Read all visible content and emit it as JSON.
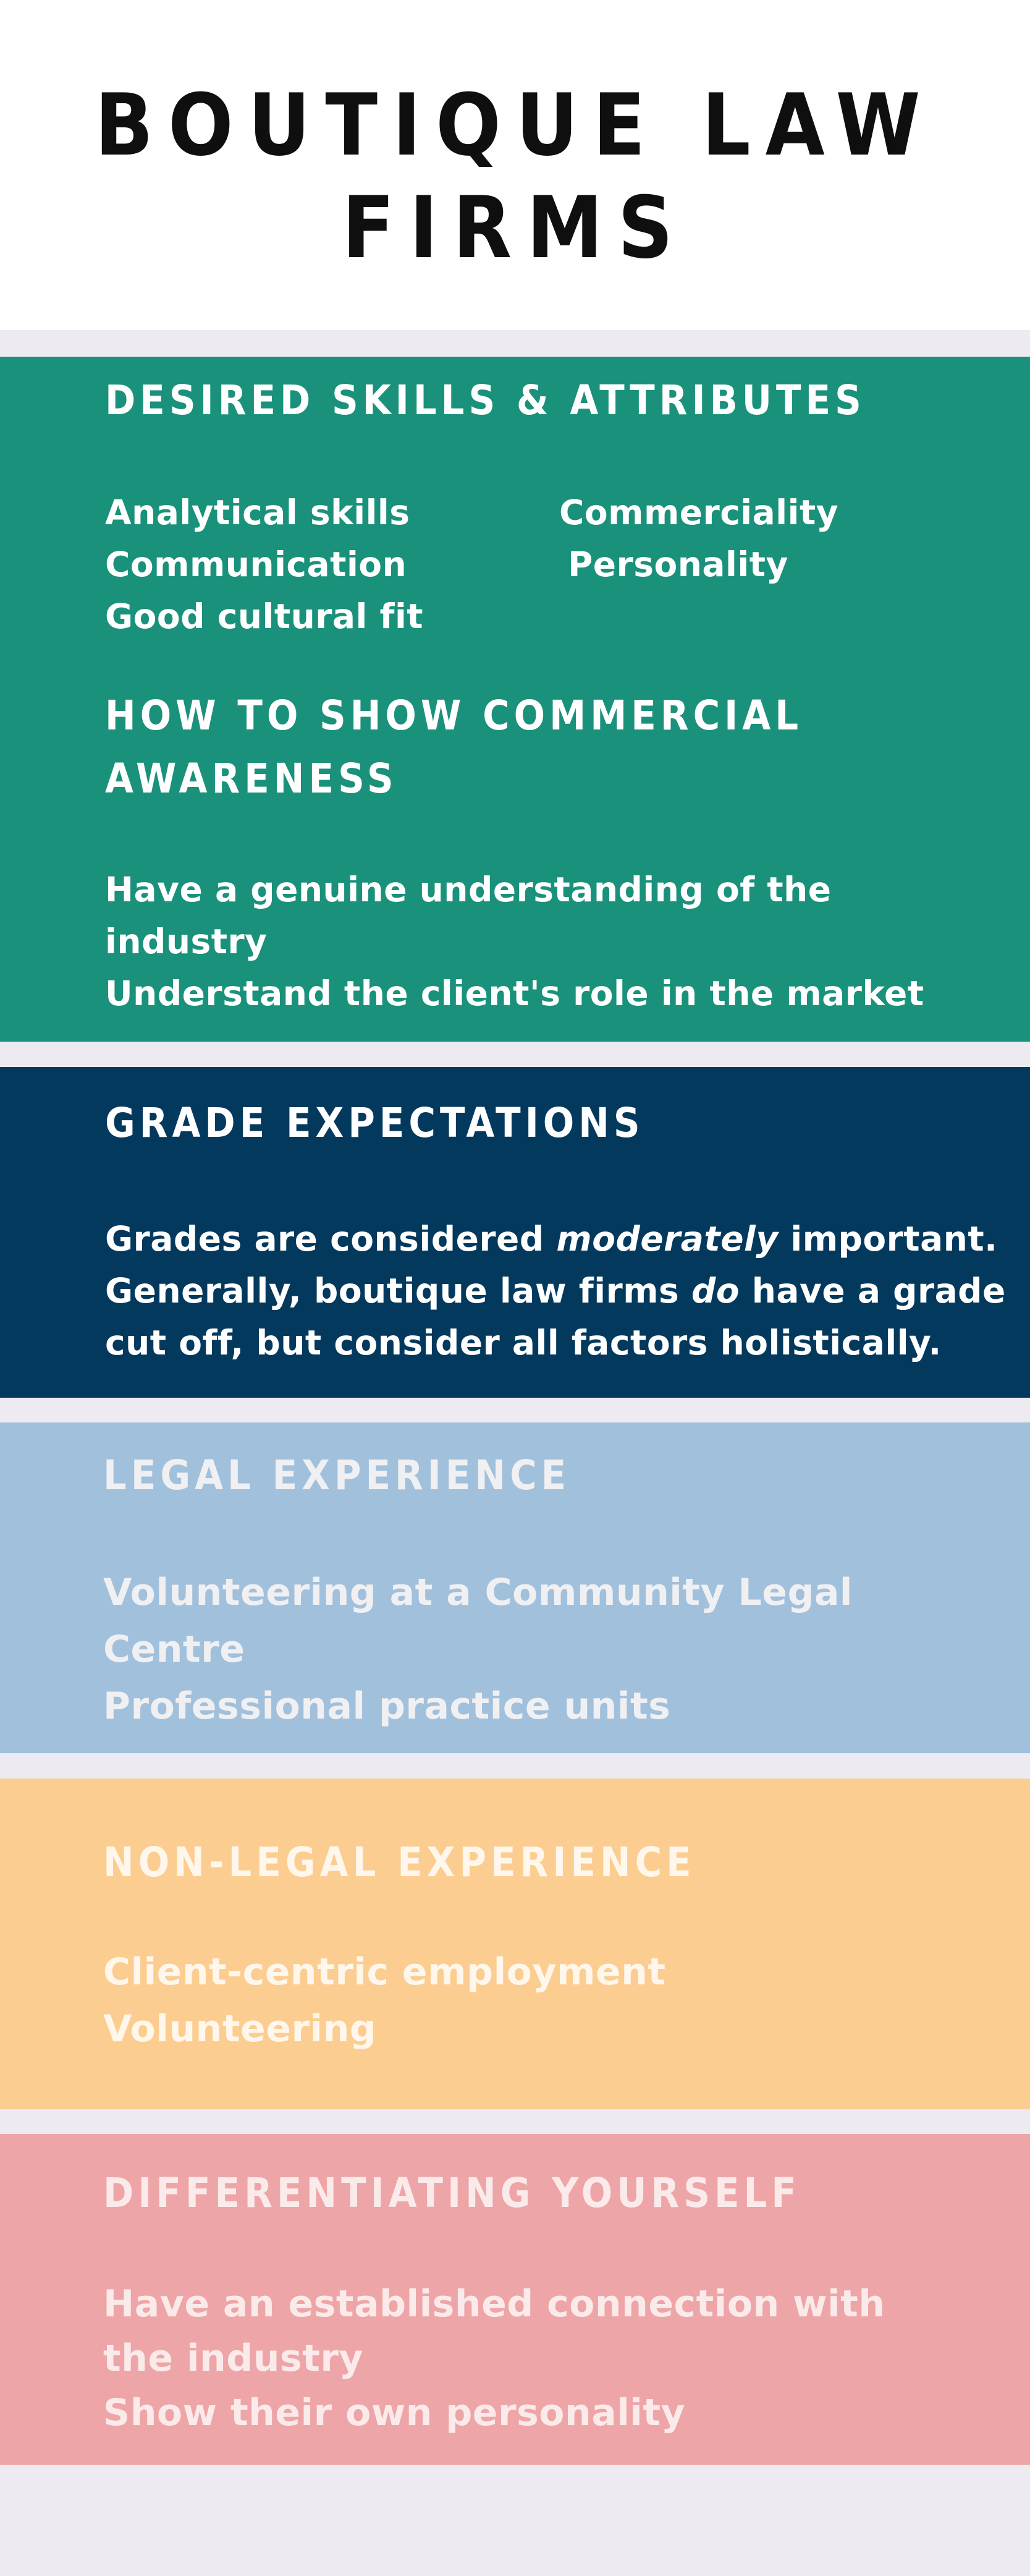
{
  "title_line1": "BOUTIQUE LAW",
  "title_line2": "FIRMS",
  "colors": {
    "skills_bg": "#1a917b",
    "grades_bg": "#04395e",
    "legal_bg": "#a1c0dc",
    "nonlegal_bg": "#fccd90",
    "differentiating_bg": "#eea5a7"
  },
  "skills": {
    "heading": "DESIRED SKILLS & ATTRIBUTES",
    "col1": [
      "Analytical skills",
      "Communication",
      "Good cultural fit"
    ],
    "col2": [
      "Commerciality",
      "Personality"
    ]
  },
  "commercial": {
    "heading_line1": "HOW TO SHOW COMMERCIAL",
    "heading_line2": "AWARENESS",
    "lines": [
      "Have a genuine understanding of the",
      "industry",
      "Understand the client's role in the market"
    ]
  },
  "grades": {
    "heading": "GRADE EXPECTATIONS",
    "line1_a": "Grades are considered ",
    "line1_em": "moderately",
    "line1_b": " important.",
    "line2_a": "Generally, boutique law firms ",
    "line2_em": "do",
    "line2_b": " have a grade",
    "line3": "cut off, but consider all factors holistically."
  },
  "legal": {
    "heading": "LEGAL EXPERIENCE",
    "lines": [
      "Volunteering at a Community Legal",
      "Centre",
      "Professional practice units"
    ]
  },
  "nonlegal": {
    "heading": "NON-LEGAL EXPERIENCE",
    "lines": [
      "Client-centric employment",
      "Volunteering"
    ]
  },
  "differentiating": {
    "heading": "DIFFERENTIATING YOURSELF",
    "lines": [
      "Have an established connection with",
      "the industry",
      "Show their own personality"
    ]
  }
}
